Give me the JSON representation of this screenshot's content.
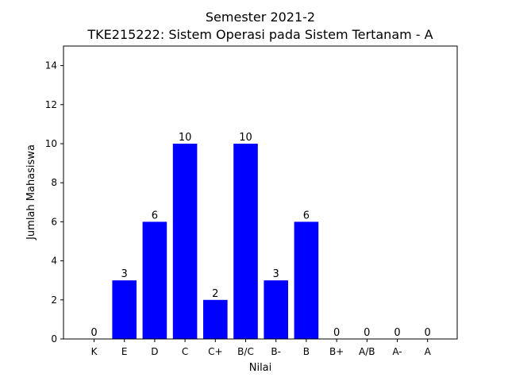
{
  "chart_data": {
    "type": "bar",
    "title_line1": "Semester 2021-2",
    "title_line2": "TKE215222: Sistem Operasi pada Sistem Tertanam - A",
    "xlabel": "Nilai",
    "ylabel": "Jumlah Mahasiswa",
    "categories": [
      "K",
      "E",
      "D",
      "C",
      "C+",
      "B/C",
      "B-",
      "B",
      "B+",
      "A/B",
      "A-",
      "A"
    ],
    "values": [
      0,
      3,
      6,
      10,
      2,
      10,
      3,
      6,
      0,
      0,
      0,
      0
    ],
    "ylim": [
      0,
      15
    ],
    "yticks": [
      0,
      2,
      4,
      6,
      8,
      10,
      12,
      14
    ],
    "bar_color": "#0000ff",
    "grid": false,
    "data_labels": true
  }
}
